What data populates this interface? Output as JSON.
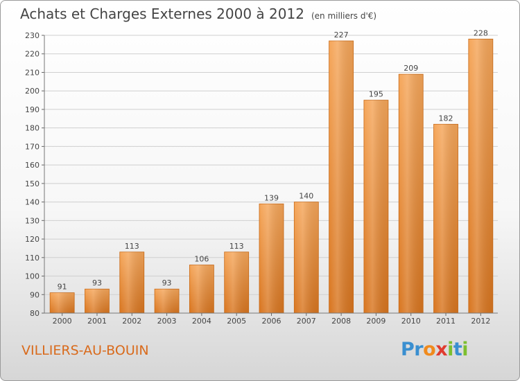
{
  "title": "Achats et Charges Externes 2000 à 2012",
  "unit_note": "(en milliers d'€)",
  "commune": "VILLIERS-AU-BOUIN",
  "logo": {
    "text": "Proxiti",
    "letters": [
      {
        "char": "P",
        "color": "#3a8fd0"
      },
      {
        "char": "r",
        "color": "#3a8fd0"
      },
      {
        "char": "o",
        "color": "#f08a1c"
      },
      {
        "char": "x",
        "color": "#e03b2f"
      },
      {
        "char": "i",
        "color": "#7cbf2f"
      },
      {
        "char": "t",
        "color": "#3a8fd0"
      },
      {
        "char": "i",
        "color": "#7cbf2f"
      }
    ]
  },
  "colors": {
    "bar_top": "#f5a65a",
    "bar_bottom": "#d8751f",
    "grid": "#cfcfcf",
    "text": "#444444"
  },
  "chart_data": {
    "type": "bar",
    "title": "Achats et Charges Externes 2000 à 2012",
    "categories": [
      "2000",
      "2001",
      "2002",
      "2003",
      "2004",
      "2005",
      "2006",
      "2007",
      "2008",
      "2009",
      "2010",
      "2011",
      "2012"
    ],
    "values": [
      91,
      93,
      113,
      93,
      106,
      113,
      139,
      140,
      227,
      195,
      209,
      182,
      228
    ],
    "ylim": [
      80,
      230
    ],
    "yticks": [
      80,
      90,
      100,
      110,
      120,
      130,
      140,
      150,
      160,
      170,
      180,
      190,
      200,
      210,
      220,
      230
    ],
    "grid": true
  }
}
